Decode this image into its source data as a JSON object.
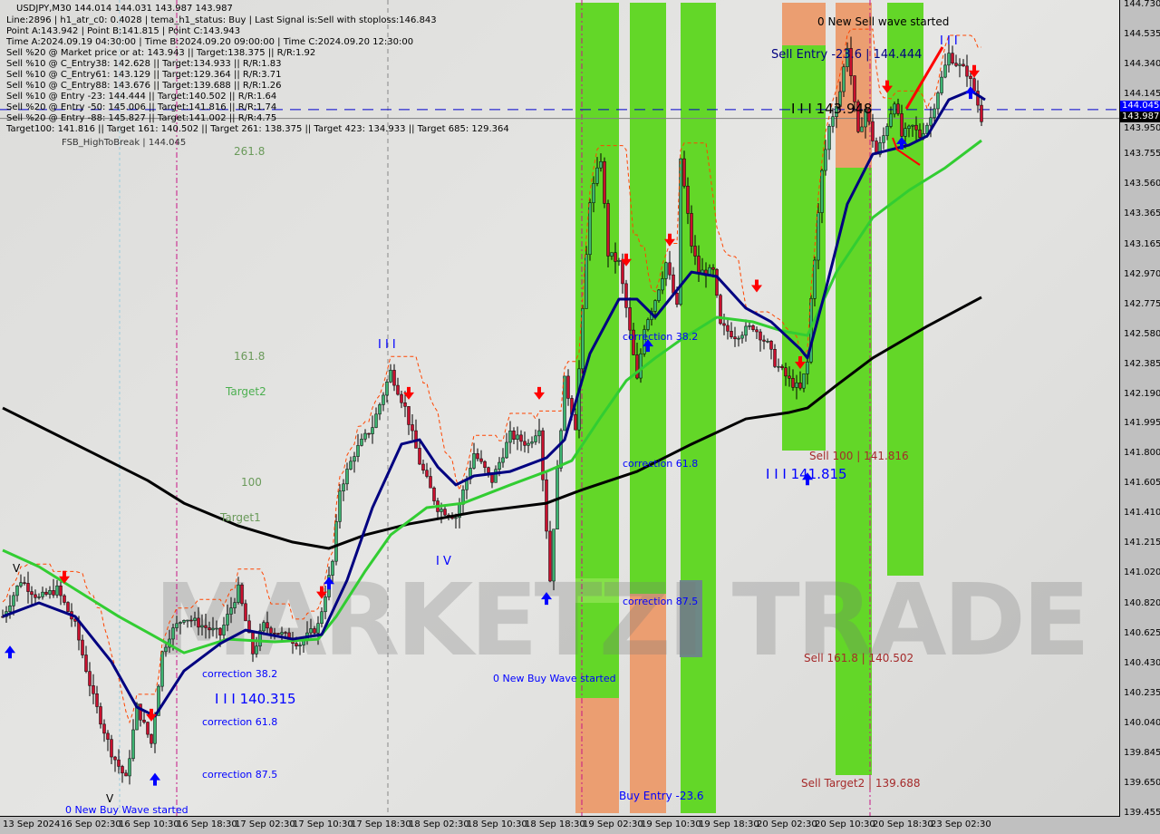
{
  "header": {
    "symbol_line": "USDJPY,M30  144.014 144.031 143.987 143.987",
    "lines": [
      "Line:2896 | h1_atr_c0: 0.4028 | tema_h1_status: Buy | Last Signal is:Sell with stoploss:146.843",
      "Point A:143.942 | Point B:141.815 | Point C:143.943",
      "Time A:2024.09.19 04:30:00 | Time B:2024.09.20 09:00:00 | Time C:2024.09.20 12:30:00",
      "Sell %20 @ Market price or at: 143.943 || Target:138.375 || R/R:1.92",
      "Sell %10 @ C_Entry38: 142.628 || Target:134.933 || R/R:1.83",
      "Sell %10 @ C_Entry61: 143.129 || Target:129.364 || R/R:3.71",
      "Sell %10 @ C_Entry88: 143.676 || Target:139.688 || R/R:1.26",
      "Sell %10 @ Entry -23: 144.444 || Target:140.502 || R/R:1.64",
      "Sell %20 @ Entry -50: 145.006 || Target:141.816 || R/R:1.74",
      "Sell %20 @ Entry -88: 145.827 || Target:141.002 || R/R:4.75",
      "Target100: 141.816 || Target 161: 140.502 || Target 261: 138.375 || Target 423: 134.933 || Target 685: 129.364"
    ]
  },
  "watermark": "MARKETZI TRADE",
  "annotations": {
    "fsb": "FSB_HighToBreak | 144.045",
    "fib_261": "261.8",
    "fib_161": "161.8",
    "target2": "Target2",
    "fib_100": "100",
    "target1": "Target1",
    "wave_iii_a": "I I I",
    "wave_iv": "I V",
    "wave_v_a": "V",
    "wave_v_b": "V",
    "wave_iii_b": "I I I",
    "corr38_a": "correction 38.2",
    "corr61_a": "correction 61.8",
    "corr87_a": "correction 87.5",
    "corr38_b": "correction 38.2",
    "corr61_b": "correction 61.8",
    "corr87_b": "correction 87.5",
    "iii_140315": "I I I 140.315",
    "new_buy_a": "0 New Buy Wave started",
    "new_buy_b": "0 New Buy Wave started",
    "buy_entry": "Buy Entry -23.6",
    "sell100": "Sell 100 | 141.816",
    "iii_141815": "I I I 141.815",
    "sell161": "Sell 161.8 | 140.502",
    "sell_target2": "Sell Target2 | 139.688",
    "new_sell": "0 New Sell wave started",
    "sell_entry": "Sell Entry -23.6 | 144.444",
    "iii_143948": "I I I 143.948"
  },
  "colors": {
    "bull": "#3cb371",
    "bear": "#c8102e",
    "ma_slow": "#000000",
    "ma_mid": "#32cd32",
    "ma_fast": "#000080",
    "stop": "#ff4500",
    "zone_green": "#5cd61e",
    "zone_orange": "#eb9a6a",
    "buy_arrow": "#0000ff",
    "sell_arrow": "#ff0000"
  },
  "chart_data": {
    "type": "candlestick",
    "title": "USDJPY,M30",
    "ylim": [
      139.455,
      144.73
    ],
    "y_ticks": [
      "144.730",
      "144.535",
      "144.340",
      "144.145",
      "143.950",
      "143.755",
      "143.560",
      "143.365",
      "143.165",
      "142.970",
      "142.775",
      "142.580",
      "142.385",
      "142.190",
      "141.995",
      "141.800",
      "141.605",
      "141.410",
      "141.215",
      "141.020",
      "140.820",
      "140.625",
      "140.430",
      "140.235",
      "140.040",
      "139.845",
      "139.650",
      "139.455"
    ],
    "x_ticks": [
      "13 Sep 2024",
      "16 Sep 02:30",
      "16 Sep 10:30",
      "16 Sep 18:30",
      "17 Sep 02:30",
      "17 Sep 10:30",
      "17 Sep 18:30",
      "18 Sep 02:30",
      "18 Sep 10:30",
      "18 Sep 18:30",
      "19 Sep 02:30",
      "19 Sep 10:30",
      "19 Sep 18:30",
      "20 Sep 02:30",
      "20 Sep 10:30",
      "20 Sep 18:30",
      "23 Sep 02:30"
    ],
    "current_bid": "143.987",
    "fsb_level": "144.045",
    "close_path": [
      [
        0,
        140.738
      ],
      [
        5,
        140.975
      ],
      [
        10,
        140.856
      ],
      [
        15,
        140.915
      ],
      [
        20,
        140.679
      ],
      [
        25,
        140.206
      ],
      [
        30,
        139.851
      ],
      [
        34,
        139.674
      ],
      [
        37,
        140.147
      ],
      [
        41,
        139.91
      ],
      [
        44,
        140.501
      ],
      [
        46,
        140.62
      ],
      [
        50,
        140.738
      ],
      [
        55,
        140.679
      ],
      [
        60,
        140.62
      ],
      [
        65,
        140.915
      ],
      [
        69,
        140.501
      ],
      [
        72,
        140.679
      ],
      [
        77,
        140.62
      ],
      [
        82,
        140.561
      ],
      [
        87,
        140.679
      ],
      [
        91,
        141.093
      ],
      [
        93,
        141.566
      ],
      [
        97,
        141.803
      ],
      [
        102,
        141.98
      ],
      [
        107,
        142.335
      ],
      [
        111,
        142.098
      ],
      [
        115,
        141.743
      ],
      [
        120,
        141.448
      ],
      [
        125,
        141.389
      ],
      [
        130,
        141.803
      ],
      [
        135,
        141.625
      ],
      [
        140,
        141.921
      ],
      [
        145,
        141.862
      ],
      [
        148,
        141.98
      ],
      [
        151,
        140.975
      ],
      [
        153,
        141.684
      ],
      [
        155,
        142.276
      ],
      [
        158,
        141.98
      ],
      [
        162,
        143.459
      ],
      [
        165,
        143.725
      ],
      [
        167,
        143.104
      ],
      [
        170,
        143.045
      ],
      [
        172,
        142.749
      ],
      [
        175,
        142.276
      ],
      [
        177,
        142.631
      ],
      [
        180,
        142.808
      ],
      [
        183,
        143.045
      ],
      [
        186,
        142.749
      ],
      [
        187,
        143.725
      ],
      [
        190,
        143.163
      ],
      [
        192,
        142.985
      ],
      [
        196,
        142.985
      ],
      [
        198,
        142.631
      ],
      [
        202,
        142.571
      ],
      [
        207,
        142.631
      ],
      [
        211,
        142.512
      ],
      [
        213,
        142.394
      ],
      [
        217,
        142.276
      ],
      [
        220,
        142.217
      ],
      [
        222,
        142.394
      ],
      [
        223,
        142.808
      ],
      [
        226,
        143.636
      ],
      [
        228,
        143.932
      ],
      [
        231,
        144.168
      ],
      [
        233,
        144.464
      ],
      [
        236,
        143.872
      ],
      [
        238,
        144.05
      ],
      [
        241,
        143.754
      ],
      [
        243,
        143.872
      ],
      [
        246,
        144.109
      ],
      [
        248,
        143.872
      ],
      [
        251,
        143.932
      ],
      [
        253,
        143.872
      ],
      [
        256,
        143.991
      ],
      [
        258,
        144.168
      ],
      [
        261,
        144.405
      ],
      [
        263,
        144.346
      ],
      [
        266,
        144.286
      ],
      [
        268,
        144.168
      ],
      [
        270,
        143.987
      ]
    ],
    "series": [
      {
        "key": "ma_slow",
        "points": [
          [
            0,
            142.098
          ],
          [
            10,
            141.98
          ],
          [
            25,
            141.803
          ],
          [
            40,
            141.625
          ],
          [
            50,
            141.477
          ],
          [
            65,
            141.329
          ],
          [
            80,
            141.223
          ],
          [
            90,
            141.182
          ],
          [
            100,
            141.27
          ],
          [
            112,
            141.341
          ],
          [
            130,
            141.418
          ],
          [
            150,
            141.477
          ],
          [
            160,
            141.566
          ],
          [
            175,
            141.684
          ],
          [
            190,
            141.862
          ],
          [
            205,
            142.027
          ],
          [
            217,
            142.069
          ],
          [
            222,
            142.098
          ],
          [
            230,
            142.246
          ],
          [
            240,
            142.424
          ],
          [
            255,
            142.631
          ],
          [
            270,
            142.82
          ]
        ]
      },
      {
        "key": "ma_mid",
        "points": [
          [
            0,
            141.17
          ],
          [
            10,
            141.063
          ],
          [
            20,
            140.915
          ],
          [
            32,
            140.738
          ],
          [
            41,
            140.62
          ],
          [
            50,
            140.501
          ],
          [
            62,
            140.59
          ],
          [
            75,
            140.573
          ],
          [
            87,
            140.59
          ],
          [
            92,
            140.738
          ],
          [
            100,
            141.034
          ],
          [
            107,
            141.27
          ],
          [
            117,
            141.448
          ],
          [
            127,
            141.477
          ],
          [
            140,
            141.596
          ],
          [
            150,
            141.684
          ],
          [
            157,
            141.755
          ],
          [
            165,
            142.039
          ],
          [
            172,
            142.276
          ],
          [
            180,
            142.424
          ],
          [
            187,
            142.542
          ],
          [
            197,
            142.69
          ],
          [
            207,
            142.66
          ],
          [
            215,
            142.601
          ],
          [
            222,
            142.571
          ],
          [
            230,
            142.985
          ],
          [
            240,
            143.34
          ],
          [
            250,
            143.518
          ],
          [
            260,
            143.665
          ],
          [
            270,
            143.843
          ]
        ]
      },
      {
        "key": "ma_fast",
        "points": [
          [
            0,
            140.738
          ],
          [
            10,
            140.827
          ],
          [
            20,
            140.738
          ],
          [
            30,
            140.442
          ],
          [
            37,
            140.147
          ],
          [
            42,
            140.088
          ],
          [
            50,
            140.383
          ],
          [
            60,
            140.561
          ],
          [
            67,
            140.649
          ],
          [
            80,
            140.59
          ],
          [
            88,
            140.62
          ],
          [
            95,
            140.975
          ],
          [
            102,
            141.448
          ],
          [
            110,
            141.862
          ],
          [
            115,
            141.891
          ],
          [
            120,
            141.714
          ],
          [
            125,
            141.596
          ],
          [
            130,
            141.655
          ],
          [
            140,
            141.684
          ],
          [
            150,
            141.773
          ],
          [
            155,
            141.891
          ],
          [
            162,
            142.453
          ],
          [
            170,
            142.808
          ],
          [
            175,
            142.808
          ],
          [
            180,
            142.69
          ],
          [
            190,
            142.985
          ],
          [
            197,
            142.956
          ],
          [
            205,
            142.749
          ],
          [
            212,
            142.66
          ],
          [
            220,
            142.483
          ],
          [
            222,
            142.424
          ],
          [
            227,
            142.867
          ],
          [
            233,
            143.429
          ],
          [
            240,
            143.754
          ],
          [
            250,
            143.813
          ],
          [
            255,
            143.872
          ],
          [
            261,
            144.109
          ],
          [
            267,
            144.168
          ],
          [
            271,
            144.109
          ]
        ]
      }
    ]
  }
}
